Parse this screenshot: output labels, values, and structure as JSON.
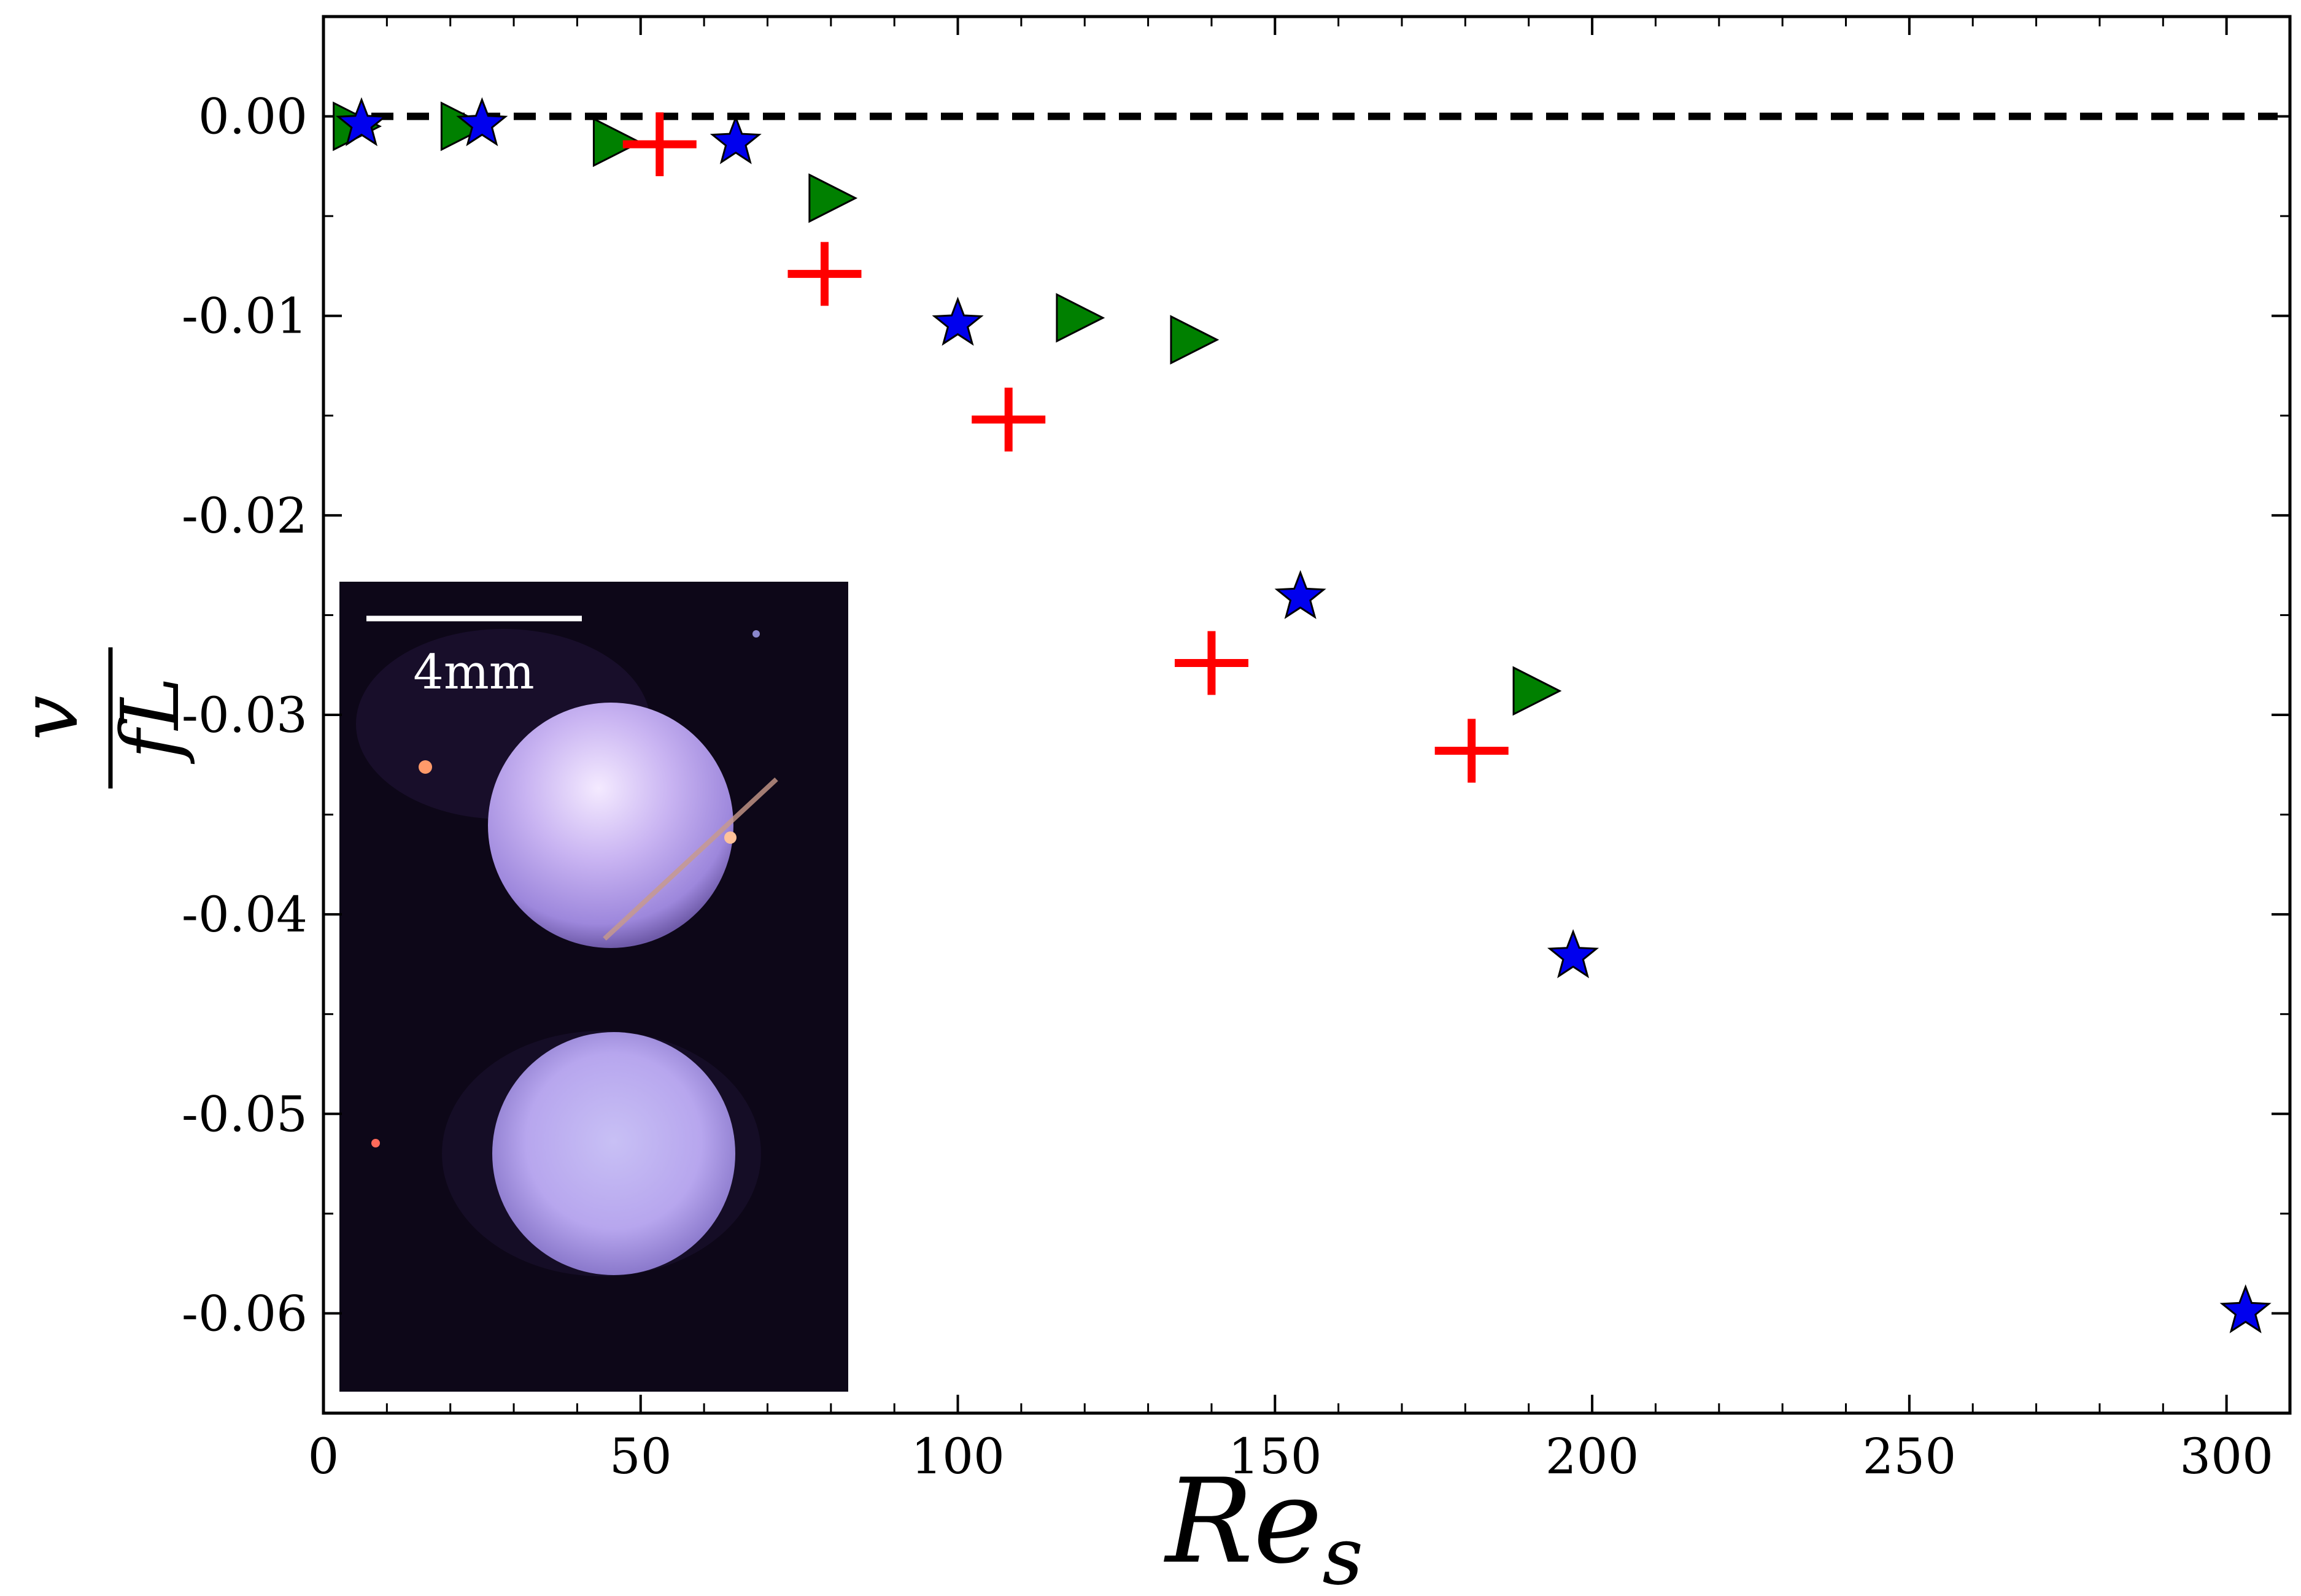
{
  "chart_data": {
    "type": "scatter",
    "title": "",
    "xlabel": "Re",
    "xlabel_subscript": "s",
    "ylabel_numerator": "v",
    "ylabel_denominator": "fL",
    "xlim": [
      0,
      310
    ],
    "ylim": [
      -0.065,
      0.005
    ],
    "x_ticks": [
      0,
      50,
      100,
      150,
      200,
      250,
      300
    ],
    "x_tick_labels": [
      "0",
      "50",
      "100",
      "150",
      "200",
      "250",
      "300"
    ],
    "y_ticks": [
      0.0,
      -0.01,
      -0.02,
      -0.03,
      -0.04,
      -0.05,
      -0.06
    ],
    "y_tick_labels": [
      "0.00",
      "-0.01",
      "-0.02",
      "-0.03",
      "-0.04",
      "-0.05",
      "-0.06"
    ],
    "reference_line": {
      "y": 0.0,
      "style": "dashed",
      "color": "#000000"
    },
    "grid": false,
    "series": [
      {
        "name": "triangle",
        "marker": "triangle-right",
        "color": "#008000",
        "points": [
          [
            5,
            -0.0005
          ],
          [
            22,
            -0.0005
          ],
          [
            46,
            -0.0013
          ],
          [
            80,
            -0.0041
          ],
          [
            119,
            -0.0101
          ],
          [
            137,
            -0.0112
          ],
          [
            191,
            -0.0288
          ]
        ]
      },
      {
        "name": "star",
        "marker": "star",
        "color": "#0000ee",
        "points": [
          [
            6,
            -0.0004
          ],
          [
            25,
            -0.0004
          ],
          [
            65,
            -0.0013
          ],
          [
            100,
            -0.0104
          ],
          [
            154,
            -0.0241
          ],
          [
            197,
            -0.0421
          ],
          [
            303,
            -0.0599
          ]
        ]
      },
      {
        "name": "plus",
        "marker": "plus",
        "color": "#ff0000",
        "points": [
          [
            53,
            -0.0014
          ],
          [
            79,
            -0.0079
          ],
          [
            108,
            -0.0152
          ],
          [
            140,
            -0.0274
          ],
          [
            181,
            -0.0318
          ]
        ]
      }
    ],
    "inset": {
      "description": "photograph",
      "scale_bar_label": "4mm"
    }
  }
}
